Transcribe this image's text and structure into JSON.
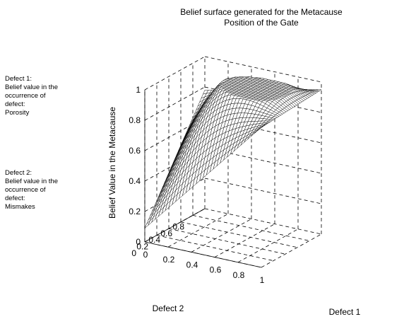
{
  "chart_data": {
    "type": "surface",
    "title_lines": [
      "Belief surface generated for the Metacause",
      "Position of the Gate"
    ],
    "xlabel": "Defect 1",
    "ylabel": "Defect 2",
    "zlabel": "Belief Value in the Metacause",
    "x_ticks": [
      "0",
      "0.2",
      "0.4",
      "0.6",
      "0.8",
      "1"
    ],
    "y_ticks": [
      "0",
      "0.2",
      "0.4",
      "0.6",
      "0.8"
    ],
    "z_ticks": [
      "0",
      "0.2",
      "0.4",
      "0.6",
      "0.8",
      "1"
    ],
    "xlim": [
      0,
      1
    ],
    "ylim": [
      0,
      1
    ],
    "zlim": [
      0,
      1
    ],
    "grid": true,
    "corner_values": {
      "defect1_0_defect2_0": 0.09,
      "defect1_0_defect2_1": 0.78,
      "defect1_1_defect2_0": 0.92,
      "defect1_1_defect2_1": 0.95
    }
  },
  "notes": [
    {
      "lines": [
        "Defect 1:",
        "Belief value in the",
        "occurrence of",
        "defect:",
        "Porosity"
      ]
    },
    {
      "lines": [
        "Defect 2:",
        "Belief value in the",
        "occurrence of",
        "defect:",
        "Mismakes"
      ]
    }
  ]
}
